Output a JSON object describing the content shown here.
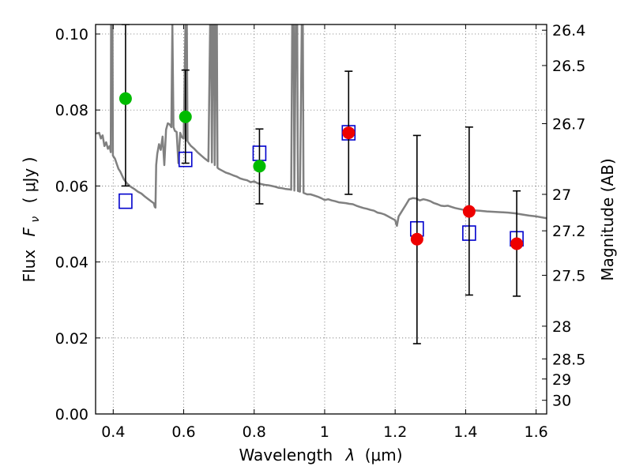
{
  "chart_data": {
    "type": "scatter",
    "title": "",
    "xlabel_text": "Wavelength",
    "xlabel_symbol": "λ",
    "xlabel_unit": "(μm)",
    "ylabel_text": "Flux",
    "ylabel_symbol": "F",
    "ylabel_subscript": "ν",
    "ylabel_unit": "( μJy )",
    "y2label": "Magnitude (AB)",
    "xlim": [
      0.35,
      1.63
    ],
    "ylim": [
      0.0,
      0.1025
    ],
    "grid": true,
    "x_ticks": [
      0.4,
      0.6,
      0.8,
      1.0,
      1.2,
      1.4,
      1.6
    ],
    "x_tick_labels": [
      "0.4",
      "0.6",
      "0.8",
      "1",
      "1.2",
      "1.4",
      "1.6"
    ],
    "y_ticks": [
      0.0,
      0.02,
      0.04,
      0.06,
      0.08,
      0.1
    ],
    "y_tick_labels": [
      "0.00",
      "0.02",
      "0.04",
      "0.06",
      "0.08",
      "0.10"
    ],
    "y2_ticks": [
      {
        "label": "26.4",
        "flux": 0.101
      },
      {
        "label": "26.5",
        "flux": 0.0917
      },
      {
        "label": "26.7",
        "flux": 0.0764
      },
      {
        "label": "27",
        "flux": 0.0578
      },
      {
        "label": "27.2",
        "flux": 0.0482
      },
      {
        "label": "27.5",
        "flux": 0.0365
      },
      {
        "label": "28",
        "flux": 0.0231
      },
      {
        "label": "28.5",
        "flux": 0.0145
      },
      {
        "label": "29",
        "flux": 0.0092
      },
      {
        "label": "30",
        "flux": 0.0036
      }
    ],
    "colors": {
      "model": "#808080",
      "observed_green": "#00bb00",
      "observed_red": "#ee0000",
      "model_box": "#0000cc",
      "errorbar": "#000000",
      "grid": "#777777"
    },
    "series": [
      {
        "type": "line",
        "color_key": "model",
        "points": [
          [
            0.35,
            0.0738
          ],
          [
            0.36,
            0.074
          ],
          [
            0.365,
            0.0725
          ],
          [
            0.37,
            0.0733
          ],
          [
            0.375,
            0.0705
          ],
          [
            0.38,
            0.0715
          ],
          [
            0.385,
            0.0698
          ],
          [
            0.39,
            0.0705
          ],
          [
            0.393,
            0.0689
          ],
          [
            0.394,
            0.1025
          ],
          [
            0.398,
            0.1025
          ],
          [
            0.399,
            0.068
          ],
          [
            0.405,
            0.0672
          ],
          [
            0.41,
            0.0658
          ],
          [
            0.415,
            0.0645
          ],
          [
            0.42,
            0.0638
          ],
          [
            0.43,
            0.0618
          ],
          [
            0.44,
            0.0606
          ],
          [
            0.45,
            0.0598
          ],
          [
            0.46,
            0.0592
          ],
          [
            0.47,
            0.0585
          ],
          [
            0.48,
            0.058
          ],
          [
            0.49,
            0.0572
          ],
          [
            0.5,
            0.0565
          ],
          [
            0.51,
            0.0558
          ],
          [
            0.515,
            0.0555
          ],
          [
            0.518,
            0.0545
          ],
          [
            0.52,
            0.0543
          ],
          [
            0.522,
            0.0655
          ],
          [
            0.525,
            0.0685
          ],
          [
            0.53,
            0.071
          ],
          [
            0.535,
            0.0695
          ],
          [
            0.54,
            0.073
          ],
          [
            0.545,
            0.0655
          ],
          [
            0.55,
            0.0748
          ],
          [
            0.555,
            0.0765
          ],
          [
            0.56,
            0.0762
          ],
          [
            0.565,
            0.0755
          ],
          [
            0.568,
            0.1025
          ],
          [
            0.571,
            0.0755
          ],
          [
            0.575,
            0.0745
          ],
          [
            0.58,
            0.0742
          ],
          [
            0.585,
            0.066
          ],
          [
            0.59,
            0.074
          ],
          [
            0.595,
            0.0728
          ],
          [
            0.6,
            0.0725
          ],
          [
            0.605,
            0.1025
          ],
          [
            0.607,
            0.072
          ],
          [
            0.609,
            0.1025
          ],
          [
            0.611,
            0.0718
          ],
          [
            0.615,
            0.0712
          ],
          [
            0.62,
            0.0706
          ],
          [
            0.63,
            0.0698
          ],
          [
            0.64,
            0.0688
          ],
          [
            0.65,
            0.068
          ],
          [
            0.66,
            0.0672
          ],
          [
            0.67,
            0.0665
          ],
          [
            0.675,
            0.1025
          ],
          [
            0.678,
            0.1025
          ],
          [
            0.68,
            0.0662
          ],
          [
            0.683,
            0.1025
          ],
          [
            0.686,
            0.1025
          ],
          [
            0.688,
            0.0655
          ],
          [
            0.691,
            0.1025
          ],
          [
            0.694,
            0.1025
          ],
          [
            0.696,
            0.0648
          ],
          [
            0.7,
            0.0645
          ],
          [
            0.71,
            0.064
          ],
          [
            0.72,
            0.0635
          ],
          [
            0.73,
            0.0632
          ],
          [
            0.74,
            0.0628
          ],
          [
            0.75,
            0.0625
          ],
          [
            0.76,
            0.062
          ],
          [
            0.77,
            0.0617
          ],
          [
            0.78,
            0.0615
          ],
          [
            0.79,
            0.061
          ],
          [
            0.8,
            0.0612
          ],
          [
            0.81,
            0.0607
          ],
          [
            0.82,
            0.0605
          ],
          [
            0.83,
            0.0603
          ],
          [
            0.84,
            0.0602
          ],
          [
            0.85,
            0.06
          ],
          [
            0.86,
            0.0598
          ],
          [
            0.87,
            0.0595
          ],
          [
            0.88,
            0.0594
          ],
          [
            0.89,
            0.0592
          ],
          [
            0.9,
            0.0591
          ],
          [
            0.905,
            0.059
          ],
          [
            0.908,
            0.1025
          ],
          [
            0.912,
            0.1025
          ],
          [
            0.914,
            0.0588
          ],
          [
            0.918,
            0.1025
          ],
          [
            0.922,
            0.1025
          ],
          [
            0.924,
            0.0587
          ],
          [
            0.93,
            0.0585
          ],
          [
            0.935,
            0.1025
          ],
          [
            0.938,
            0.1025
          ],
          [
            0.94,
            0.0582
          ],
          [
            0.95,
            0.0578
          ],
          [
            0.96,
            0.0578
          ],
          [
            0.97,
            0.0575
          ],
          [
            0.98,
            0.0572
          ],
          [
            0.99,
            0.0568
          ],
          [
            1.0,
            0.0563
          ],
          [
            1.01,
            0.0565
          ],
          [
            1.02,
            0.0562
          ],
          [
            1.03,
            0.056
          ],
          [
            1.04,
            0.0557
          ],
          [
            1.05,
            0.0556
          ],
          [
            1.06,
            0.0555
          ],
          [
            1.07,
            0.0553
          ],
          [
            1.08,
            0.0552
          ],
          [
            1.09,
            0.0548
          ],
          [
            1.1,
            0.0545
          ],
          [
            1.11,
            0.0542
          ],
          [
            1.12,
            0.054
          ],
          [
            1.13,
            0.0537
          ],
          [
            1.14,
            0.0535
          ],
          [
            1.15,
            0.053
          ],
          [
            1.16,
            0.0528
          ],
          [
            1.17,
            0.0525
          ],
          [
            1.18,
            0.052
          ],
          [
            1.19,
            0.0515
          ],
          [
            1.2,
            0.051
          ],
          [
            1.205,
            0.0495
          ],
          [
            1.21,
            0.052
          ],
          [
            1.22,
            0.0535
          ],
          [
            1.23,
            0.055
          ],
          [
            1.24,
            0.0565
          ],
          [
            1.25,
            0.0568
          ],
          [
            1.26,
            0.0567
          ],
          [
            1.27,
            0.0562
          ],
          [
            1.28,
            0.0565
          ],
          [
            1.29,
            0.0563
          ],
          [
            1.3,
            0.056
          ],
          [
            1.31,
            0.0555
          ],
          [
            1.32,
            0.0552
          ],
          [
            1.33,
            0.0548
          ],
          [
            1.34,
            0.0547
          ],
          [
            1.35,
            0.0548
          ],
          [
            1.36,
            0.0545
          ],
          [
            1.37,
            0.0542
          ],
          [
            1.38,
            0.054
          ],
          [
            1.39,
            0.0538
          ],
          [
            1.4,
            0.0537
          ],
          [
            1.42,
            0.0536
          ],
          [
            1.44,
            0.0535
          ],
          [
            1.46,
            0.0533
          ],
          [
            1.48,
            0.0532
          ],
          [
            1.5,
            0.0531
          ],
          [
            1.52,
            0.053
          ],
          [
            1.54,
            0.0528
          ],
          [
            1.56,
            0.0525
          ],
          [
            1.58,
            0.0522
          ],
          [
            1.6,
            0.052
          ],
          [
            1.63,
            0.0515
          ]
        ]
      },
      {
        "type": "box",
        "color_key": "model_box",
        "points": [
          {
            "x": 0.435,
            "y": 0.056
          },
          {
            "x": 0.605,
            "y": 0.067
          },
          {
            "x": 0.815,
            "y": 0.0686
          },
          {
            "x": 1.068,
            "y": 0.074
          },
          {
            "x": 1.262,
            "y": 0.0487
          },
          {
            "x": 1.41,
            "y": 0.0476
          },
          {
            "x": 1.545,
            "y": 0.0461
          }
        ]
      },
      {
        "type": "point",
        "color_key": "observed_green",
        "points": [
          {
            "x": 0.435,
            "y": 0.083,
            "ylo": 0.06,
            "yhi": 0.1025
          },
          {
            "x": 0.605,
            "y": 0.0782,
            "ylo": 0.066,
            "yhi": 0.0905
          },
          {
            "x": 0.815,
            "y": 0.0652,
            "ylo": 0.0553,
            "yhi": 0.075
          }
        ]
      },
      {
        "type": "point",
        "color_key": "observed_red",
        "points": [
          {
            "x": 1.068,
            "y": 0.074,
            "ylo": 0.0578,
            "yhi": 0.0902
          },
          {
            "x": 1.262,
            "y": 0.046,
            "ylo": 0.0185,
            "yhi": 0.0733
          },
          {
            "x": 1.41,
            "y": 0.0533,
            "ylo": 0.0313,
            "yhi": 0.0755
          },
          {
            "x": 1.545,
            "y": 0.0448,
            "ylo": 0.031,
            "yhi": 0.0587
          }
        ]
      }
    ]
  }
}
